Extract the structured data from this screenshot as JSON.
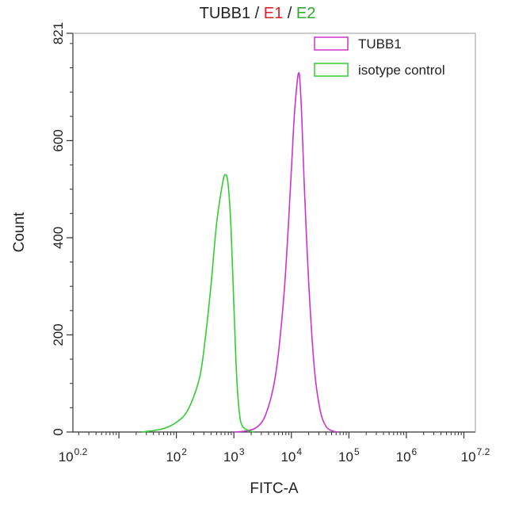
{
  "title": {
    "part1": "TUBB1",
    "sep1": " / ",
    "part2": "E1",
    "sep2": " / ",
    "part3": "E2",
    "colors": {
      "part1": "#222222",
      "part2": "#e0202a",
      "part3": "#2eaa2e"
    }
  },
  "chart_data": {
    "type": "line",
    "title": "TUBB1 / E1 / E2",
    "xlabel": "FITC-A",
    "ylabel": "Count",
    "x_scale": "log10",
    "xlim": [
      1.5849,
      15848932
    ],
    "ylim": [
      0,
      821
    ],
    "grid": false,
    "legend_position": "top-right",
    "x_ticks": [
      {
        "base": "10",
        "exp": "0.2"
      },
      {
        "base": "10",
        "exp": "2"
      },
      {
        "base": "10",
        "exp": "3"
      },
      {
        "base": "10",
        "exp": "4"
      },
      {
        "base": "10",
        "exp": "5"
      },
      {
        "base": "10",
        "exp": "6"
      },
      {
        "base": "10",
        "exp": "7.2"
      }
    ],
    "y_ticks": [
      "0",
      "200",
      "400",
      "600",
      "821"
    ],
    "series": [
      {
        "name": "TUBB1",
        "color": "#cc33cc",
        "x": [
          1000,
          1585,
          2512,
          3548,
          5012,
          6310,
          7943,
          10000,
          11220,
          12589,
          13490,
          14125,
          15136,
          16596,
          19953,
          25119,
          31623,
          39811,
          50119,
          63096
        ],
        "y": [
          0,
          2,
          10,
          35,
          100,
          190,
          330,
          540,
          650,
          720,
          740,
          720,
          650,
          520,
          310,
          130,
          45,
          12,
          3,
          0
        ]
      },
      {
        "name": "isotype control",
        "color": "#33cc33",
        "x": [
          25,
          40,
          63,
          100,
          158,
          251,
          316,
          398,
          501,
          631,
          708,
          794,
          891,
          1000,
          1122,
          1259,
          1413,
          1778,
          2239
        ],
        "y": [
          0,
          3,
          8,
          20,
          45,
          110,
          190,
          300,
          430,
          510,
          530,
          510,
          420,
          260,
          110,
          35,
          12,
          3,
          0
        ]
      }
    ]
  }
}
